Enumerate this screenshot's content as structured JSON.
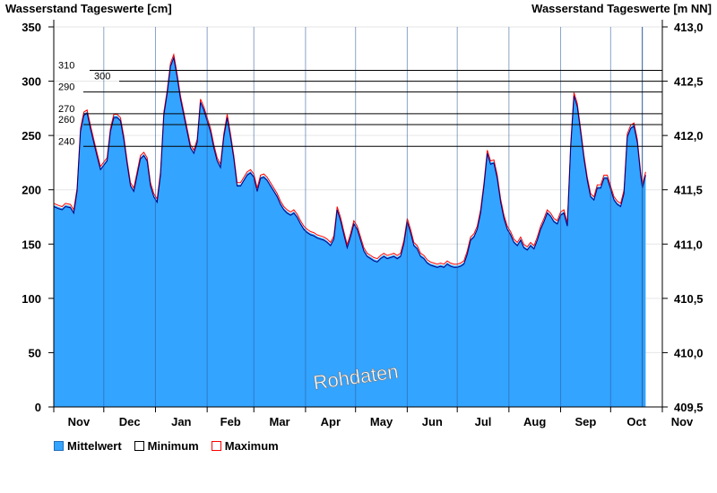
{
  "chart_data": {
    "type": "area",
    "y_left_label": "Wasserstand Tageswerte [cm]",
    "y_right_label": "Wasserstand Tageswerte [m NN]",
    "ylim": [
      0,
      350
    ],
    "y_ticks": [
      0,
      50,
      100,
      150,
      200,
      250,
      300,
      350
    ],
    "y_right_lim": [
      409.5,
      413.0
    ],
    "y_right_ticks": [
      "409,5",
      "410,0",
      "410,5",
      "411,0",
      "411,5",
      "412,0",
      "412,5",
      "413,0"
    ],
    "x_ticks": [
      "Nov",
      "Dec",
      "Jan",
      "Feb",
      "Mar",
      "Apr",
      "May",
      "Jun",
      "Jul",
      "Aug",
      "Sep",
      "Oct",
      "Nov"
    ],
    "days_total": 365,
    "reference_lines": [
      {
        "label": "310",
        "value": 310
      },
      {
        "label": "300",
        "value": 300
      },
      {
        "label": "290",
        "value": 290
      },
      {
        "label": "270",
        "value": 270
      },
      {
        "label": "260",
        "value": 260
      },
      {
        "label": "240",
        "value": 240
      }
    ],
    "watermark": "Rohdaten",
    "series": [
      {
        "name": "Mittelwert",
        "color": "#33a4ff"
      },
      {
        "name": "Minimum",
        "color": "#000080"
      },
      {
        "name": "Maximum",
        "color": "#ff0000"
      }
    ],
    "mean_values": [
      [
        0,
        186
      ],
      [
        3,
        184
      ],
      [
        5,
        183
      ],
      [
        7,
        186
      ],
      [
        10,
        185
      ],
      [
        12,
        180
      ],
      [
        14,
        200
      ],
      [
        16,
        255
      ],
      [
        18,
        270
      ],
      [
        20,
        272
      ],
      [
        22,
        258
      ],
      [
        24,
        245
      ],
      [
        26,
        232
      ],
      [
        28,
        220
      ],
      [
        30,
        224
      ],
      [
        32,
        228
      ],
      [
        34,
        255
      ],
      [
        36,
        268
      ],
      [
        38,
        268
      ],
      [
        40,
        265
      ],
      [
        42,
        248
      ],
      [
        44,
        225
      ],
      [
        46,
        205
      ],
      [
        48,
        200
      ],
      [
        50,
        215
      ],
      [
        52,
        230
      ],
      [
        54,
        233
      ],
      [
        56,
        228
      ],
      [
        58,
        205
      ],
      [
        60,
        195
      ],
      [
        62,
        190
      ],
      [
        64,
        215
      ],
      [
        66,
        270
      ],
      [
        68,
        290
      ],
      [
        70,
        315
      ],
      [
        72,
        323
      ],
      [
        74,
        305
      ],
      [
        76,
        285
      ],
      [
        78,
        270
      ],
      [
        80,
        255
      ],
      [
        82,
        240
      ],
      [
        84,
        235
      ],
      [
        86,
        245
      ],
      [
        88,
        282
      ],
      [
        90,
        275
      ],
      [
        92,
        265
      ],
      [
        94,
        255
      ],
      [
        96,
        240
      ],
      [
        98,
        228
      ],
      [
        100,
        222
      ],
      [
        102,
        250
      ],
      [
        104,
        268
      ],
      [
        106,
        250
      ],
      [
        108,
        230
      ],
      [
        110,
        205
      ],
      [
        112,
        205
      ],
      [
        114,
        210
      ],
      [
        116,
        215
      ],
      [
        118,
        217
      ],
      [
        120,
        213
      ],
      [
        122,
        200
      ],
      [
        124,
        212
      ],
      [
        126,
        213
      ],
      [
        128,
        210
      ],
      [
        130,
        205
      ],
      [
        132,
        200
      ],
      [
        134,
        195
      ],
      [
        136,
        188
      ],
      [
        138,
        183
      ],
      [
        140,
        180
      ],
      [
        142,
        178
      ],
      [
        144,
        180
      ],
      [
        146,
        176
      ],
      [
        148,
        170
      ],
      [
        150,
        165
      ],
      [
        152,
        162
      ],
      [
        154,
        160
      ],
      [
        156,
        159
      ],
      [
        158,
        157
      ],
      [
        160,
        156
      ],
      [
        162,
        155
      ],
      [
        164,
        153
      ],
      [
        166,
        150
      ],
      [
        168,
        156
      ],
      [
        170,
        183
      ],
      [
        172,
        173
      ],
      [
        174,
        160
      ],
      [
        176,
        148
      ],
      [
        178,
        158
      ],
      [
        180,
        170
      ],
      [
        182,
        165
      ],
      [
        184,
        155
      ],
      [
        186,
        145
      ],
      [
        188,
        140
      ],
      [
        190,
        138
      ],
      [
        192,
        136
      ],
      [
        194,
        135
      ],
      [
        196,
        138
      ],
      [
        198,
        140
      ],
      [
        200,
        138
      ],
      [
        202,
        139
      ],
      [
        204,
        140
      ],
      [
        206,
        138
      ],
      [
        208,
        140
      ],
      [
        210,
        152
      ],
      [
        212,
        172
      ],
      [
        214,
        162
      ],
      [
        216,
        150
      ],
      [
        218,
        147
      ],
      [
        220,
        140
      ],
      [
        222,
        138
      ],
      [
        224,
        134
      ],
      [
        226,
        132
      ],
      [
        228,
        131
      ],
      [
        230,
        130
      ],
      [
        232,
        131
      ],
      [
        234,
        130
      ],
      [
        236,
        133
      ],
      [
        238,
        131
      ],
      [
        240,
        130
      ],
      [
        242,
        130
      ],
      [
        244,
        131
      ],
      [
        246,
        133
      ],
      [
        248,
        142
      ],
      [
        250,
        155
      ],
      [
        252,
        158
      ],
      [
        254,
        165
      ],
      [
        256,
        180
      ],
      [
        258,
        205
      ],
      [
        260,
        235
      ],
      [
        262,
        225
      ],
      [
        264,
        226
      ],
      [
        266,
        212
      ],
      [
        268,
        190
      ],
      [
        270,
        175
      ],
      [
        272,
        165
      ],
      [
        274,
        160
      ],
      [
        276,
        153
      ],
      [
        278,
        150
      ],
      [
        280,
        155
      ],
      [
        282,
        148
      ],
      [
        284,
        146
      ],
      [
        286,
        150
      ],
      [
        288,
        147
      ],
      [
        290,
        155
      ],
      [
        292,
        165
      ],
      [
        294,
        172
      ],
      [
        296,
        180
      ],
      [
        298,
        177
      ],
      [
        300,
        172
      ],
      [
        302,
        170
      ],
      [
        304,
        178
      ],
      [
        306,
        180
      ],
      [
        308,
        168
      ],
      [
        310,
        240
      ],
      [
        312,
        288
      ],
      [
        314,
        278
      ],
      [
        316,
        255
      ],
      [
        318,
        230
      ],
      [
        320,
        210
      ],
      [
        322,
        195
      ],
      [
        324,
        192
      ],
      [
        326,
        203
      ],
      [
        328,
        203
      ],
      [
        330,
        212
      ],
      [
        332,
        212
      ],
      [
        334,
        202
      ],
      [
        336,
        192
      ],
      [
        338,
        188
      ],
      [
        340,
        186
      ],
      [
        342,
        198
      ],
      [
        344,
        250
      ],
      [
        346,
        258
      ],
      [
        348,
        260
      ],
      [
        350,
        245
      ],
      [
        352,
        215
      ],
      [
        353,
        203
      ],
      [
        355,
        215
      ]
    ]
  },
  "legend": {
    "mean_label": "Mittelwert",
    "min_label": "Minimum",
    "max_label": "Maximum"
  }
}
